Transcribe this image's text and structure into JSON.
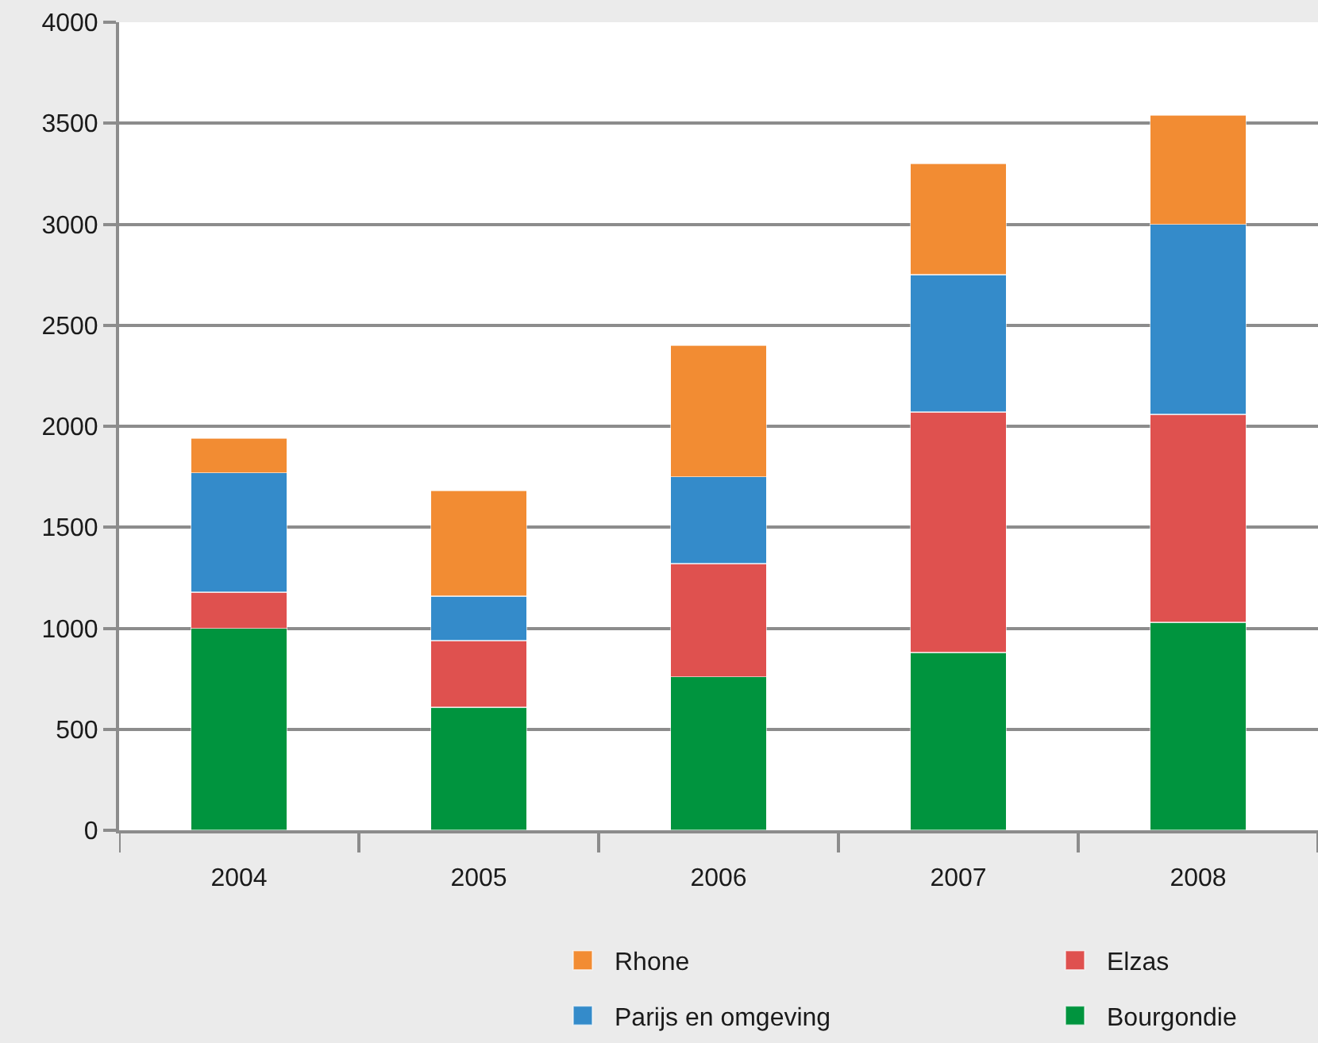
{
  "chart_data": {
    "type": "bar",
    "stacked": true,
    "categories": [
      "2004",
      "2005",
      "2006",
      "2007",
      "2008"
    ],
    "series": [
      {
        "name": "Bourgondie",
        "color": "#00943e",
        "values": [
          1000,
          610,
          760,
          880,
          1030
        ]
      },
      {
        "name": "Elzas",
        "color": "#df514f",
        "values": [
          180,
          330,
          560,
          1190,
          1030
        ]
      },
      {
        "name": "Parijs en omgeving",
        "color": "#348bca",
        "values": [
          590,
          220,
          430,
          680,
          940
        ]
      },
      {
        "name": "Rhone",
        "color": "#f28c33",
        "values": [
          170,
          520,
          650,
          550,
          540
        ]
      }
    ],
    "ylim": [
      0,
      4000
    ],
    "yticks": [
      0,
      500,
      1000,
      1500,
      2000,
      2500,
      3000,
      3500,
      4000
    ],
    "grid": "y",
    "legend": "bottom"
  }
}
